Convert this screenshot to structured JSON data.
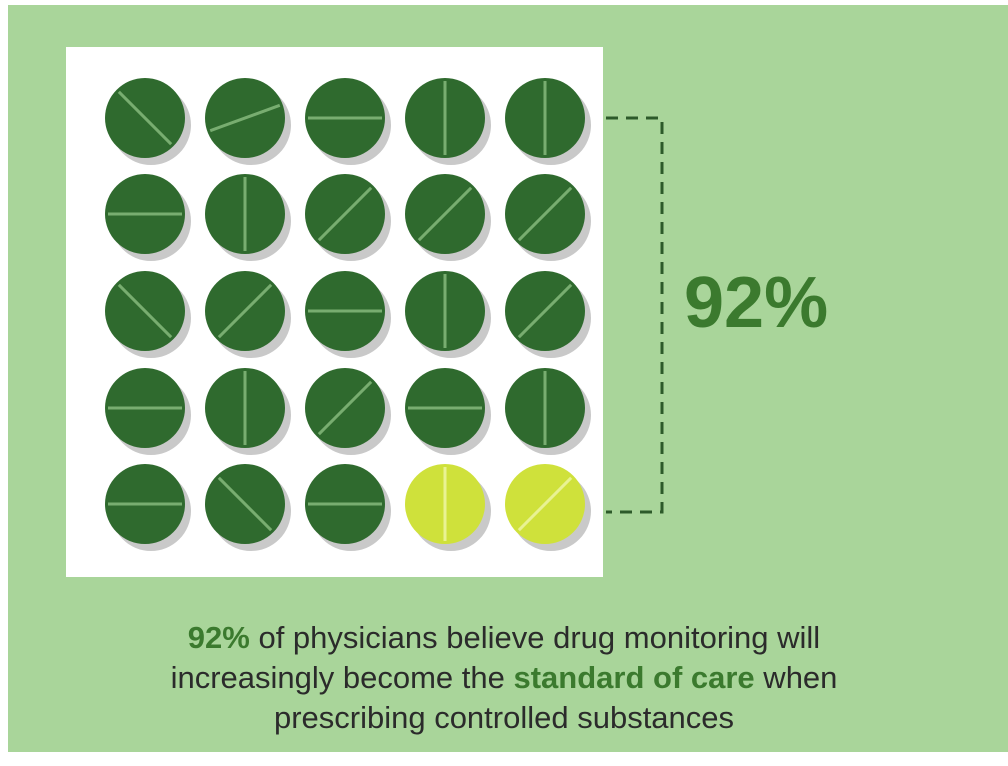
{
  "side_label": "92%",
  "caption": {
    "highlight_1": "92%",
    "text_1": " of physicians believe drug monitoring will",
    "text_2": "increasingly become the ",
    "highlight_2": "standard of care",
    "text_3": " when",
    "text_4": "prescribing controlled substances"
  }
}
